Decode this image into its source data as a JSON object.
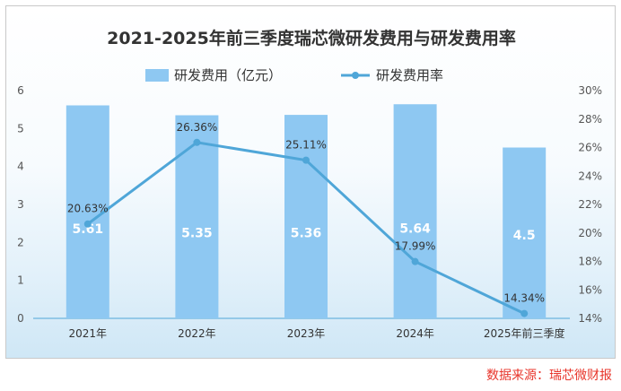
{
  "chart_data": {
    "type": "bar+line",
    "title": "2021-2025年前三季度瑞芯微研发费用与研发费用率",
    "categories": [
      "2021年",
      "2022年",
      "2023年",
      "2024年",
      "2025年前三季度"
    ],
    "series": [
      {
        "name": "研发费用（亿元）",
        "type": "bar",
        "axis": "left",
        "values": [
          5.61,
          5.35,
          5.36,
          5.64,
          4.5
        ],
        "labels": [
          "5.61",
          "5.35",
          "5.36",
          "5.64",
          "4.5"
        ],
        "color": "#8ec8f2"
      },
      {
        "name": "研发费用率",
        "type": "line",
        "axis": "right",
        "values": [
          20.63,
          26.36,
          25.11,
          17.99,
          14.34
        ],
        "labels": [
          "20.63%",
          "26.36%",
          "25.11%",
          "17.99%",
          "14.34%"
        ],
        "color": "#4fa6d8"
      }
    ],
    "y_left": {
      "range": [
        0,
        6
      ],
      "ticks": [
        "0",
        "1",
        "2",
        "3",
        "4",
        "5",
        "6"
      ]
    },
    "y_right": {
      "range": [
        14,
        30
      ],
      "ticks": [
        "14%",
        "16%",
        "18%",
        "20%",
        "22%",
        "24%",
        "26%",
        "28%",
        "30%"
      ]
    },
    "grid": false,
    "legend_position": "top-center"
  },
  "source_note": "数据来源：瑞芯微财报"
}
